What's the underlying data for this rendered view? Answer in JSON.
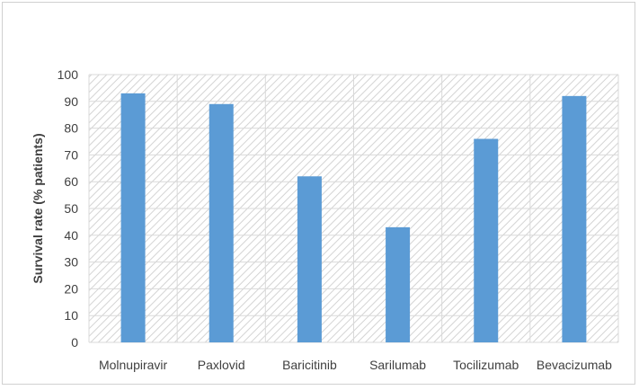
{
  "chart_data": {
    "type": "bar",
    "title": "",
    "xlabel": "",
    "ylabel": "Survival rate (% patients)",
    "ylim": [
      0,
      100
    ],
    "yticks": [
      0,
      10,
      20,
      30,
      40,
      50,
      60,
      70,
      80,
      90,
      100
    ],
    "categories": [
      "Molnupiravir",
      "Paxlovid",
      "Baricitinib",
      "Sarilumab",
      "Tocilizumab",
      "Bevacizumab"
    ],
    "values": [
      93,
      89,
      62,
      43,
      76,
      92
    ],
    "grid": true,
    "legend": "none",
    "bar_color": "#5b9bd5",
    "grid_color": "#d9d9d9",
    "plot_background": "hatched-gray"
  }
}
